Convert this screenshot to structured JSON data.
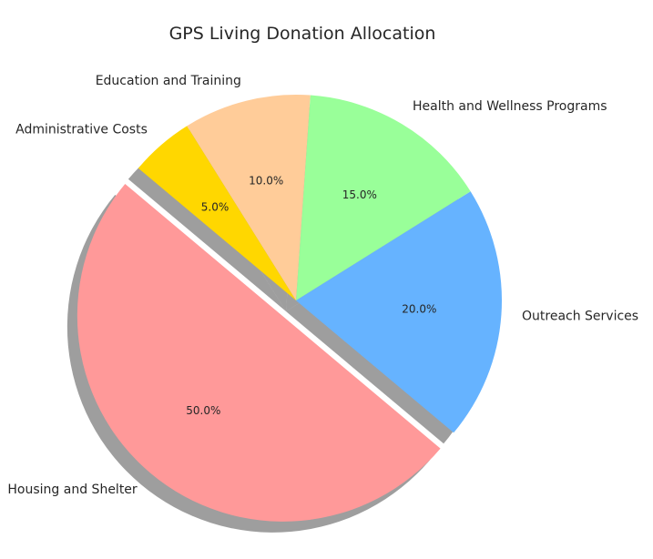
{
  "chart_data": {
    "type": "pie",
    "title": "GPS Living Donation Allocation",
    "labels": [
      "Housing and Shelter",
      "Outreach Services",
      "Health and Wellness Programs",
      "Education and Training",
      "Administrative Costs"
    ],
    "values": [
      50,
      20,
      15,
      10,
      5
    ],
    "percent_labels": [
      "50.0%",
      "20.0%",
      "15.0%",
      "10.0%",
      "5.0%"
    ],
    "colors": [
      "#ff9999",
      "#66b3ff",
      "#99ff99",
      "#ffcc99",
      "#ffd700"
    ],
    "exploded": [
      true,
      false,
      false,
      false,
      false
    ],
    "shadow": true,
    "legend": "none",
    "direction": "counterclockwise"
  }
}
